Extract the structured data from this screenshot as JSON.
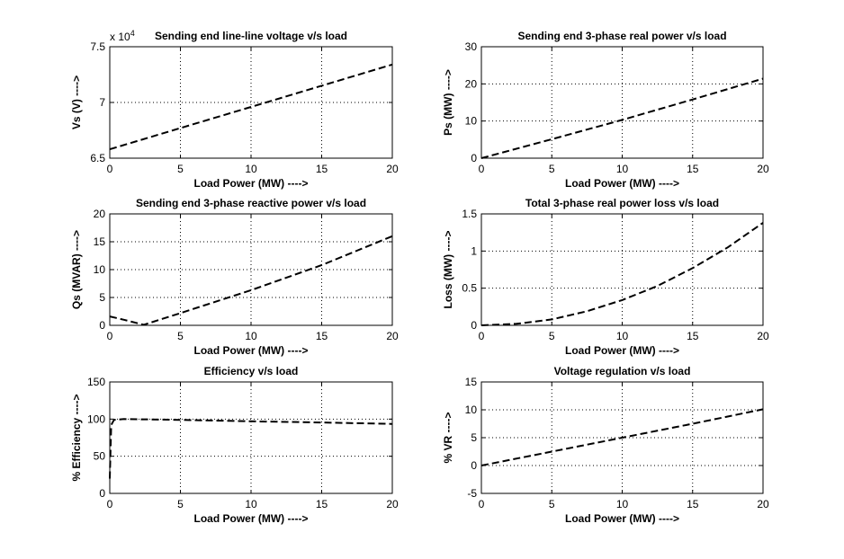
{
  "figure": {
    "background": "#ffffff",
    "line_color": "#000000",
    "line_style": "dashed"
  },
  "chart_data": [
    {
      "type": "line",
      "title": "Sending end line-line voltage v/s load",
      "xlabel": "Load Power (MW) ---->",
      "ylabel": "Vs (V) ---->",
      "exponent_label": "x 10",
      "exponent_power": "4",
      "xlim": [
        0,
        20
      ],
      "ylim": [
        6.5,
        7.5
      ],
      "xticks": [
        0,
        5,
        10,
        15,
        20
      ],
      "xtick_labels": [
        "0",
        "5",
        "10",
        "15",
        "20"
      ],
      "yticks": [
        6.5,
        7,
        7.5
      ],
      "ytick_labels": [
        "6.5",
        "7",
        "7.5"
      ],
      "grid": true,
      "series": [
        {
          "x": [
            0,
            5,
            10,
            15,
            20
          ],
          "y": [
            6.58,
            6.77,
            6.96,
            7.15,
            7.34
          ]
        }
      ]
    },
    {
      "type": "line",
      "title": "Sending end 3-phase real power v/s load",
      "xlabel": "Load Power (MW) ---->",
      "ylabel": "Ps (MW) ---->",
      "xlim": [
        0,
        20
      ],
      "ylim": [
        0,
        30
      ],
      "xticks": [
        0,
        5,
        10,
        15,
        20
      ],
      "xtick_labels": [
        "0",
        "5",
        "10",
        "15",
        "20"
      ],
      "yticks": [
        0,
        10,
        20,
        30
      ],
      "ytick_labels": [
        "0",
        "10",
        "20",
        "30"
      ],
      "grid": true,
      "series": [
        {
          "x": [
            0,
            5,
            10,
            15,
            20
          ],
          "y": [
            0,
            5.1,
            10.3,
            15.8,
            21.4
          ]
        }
      ]
    },
    {
      "type": "line",
      "title": "Sending end 3-phase reactive power v/s load",
      "xlabel": "Load Power (MW) ---->",
      "ylabel": "Qs (MVAR) ---->",
      "xlim": [
        0,
        20
      ],
      "ylim": [
        0,
        20
      ],
      "xticks": [
        0,
        5,
        10,
        15,
        20
      ],
      "xtick_labels": [
        "0",
        "5",
        "10",
        "15",
        "20"
      ],
      "yticks": [
        0,
        5,
        10,
        15,
        20
      ],
      "ytick_labels": [
        "0",
        "5",
        "10",
        "15",
        "20"
      ],
      "grid": true,
      "series": [
        {
          "x": [
            0,
            1,
            2.4,
            5,
            10,
            15,
            20
          ],
          "y": [
            1.6,
            1.0,
            0.1,
            2.2,
            6.3,
            10.8,
            16.0
          ]
        }
      ]
    },
    {
      "type": "line",
      "title": "Total 3-phase real power loss v/s load",
      "xlabel": "Load Power (MW) ---->",
      "ylabel": "Loss (MW) ---->",
      "xlim": [
        0,
        20
      ],
      "ylim": [
        0,
        1.5
      ],
      "xticks": [
        0,
        5,
        10,
        15,
        20
      ],
      "xtick_labels": [
        "0",
        "5",
        "10",
        "15",
        "20"
      ],
      "yticks": [
        0,
        0.5,
        1,
        1.5
      ],
      "ytick_labels": [
        "0",
        "0.5",
        "1",
        "1.5"
      ],
      "grid": true,
      "series": [
        {
          "x": [
            0,
            2.5,
            5,
            7.5,
            10,
            12.5,
            15,
            17.5,
            20
          ],
          "y": [
            0,
            0.02,
            0.08,
            0.19,
            0.34,
            0.53,
            0.77,
            1.05,
            1.38
          ]
        }
      ]
    },
    {
      "type": "line",
      "title": "Efficiency v/s load",
      "xlabel": "Load Power (MW) ---->",
      "ylabel": "% Efficiency ---->",
      "xlim": [
        0,
        20
      ],
      "ylim": [
        0,
        150
      ],
      "xticks": [
        0,
        5,
        10,
        15,
        20
      ],
      "xtick_labels": [
        "0",
        "5",
        "10",
        "15",
        "20"
      ],
      "yticks": [
        0,
        50,
        100,
        150
      ],
      "ytick_labels": [
        "0",
        "50",
        "100",
        "150"
      ],
      "grid": true,
      "series": [
        {
          "x": [
            0,
            0.1,
            0.3,
            1,
            5,
            10,
            15,
            20
          ],
          "y": [
            20,
            92,
            99,
            100,
            99,
            97,
            95.5,
            93.5
          ]
        }
      ]
    },
    {
      "type": "line",
      "title": "Voltage regulation v/s load",
      "xlabel": "Load Power (MW) ---->",
      "ylabel": "% VR ---->",
      "xlim": [
        0,
        20
      ],
      "ylim": [
        -5,
        15
      ],
      "xticks": [
        0,
        5,
        10,
        15,
        20
      ],
      "xtick_labels": [
        "0",
        "5",
        "10",
        "15",
        "20"
      ],
      "yticks": [
        -5,
        0,
        5,
        10,
        15
      ],
      "ytick_labels": [
        "-5",
        "0",
        "5",
        "10",
        "15"
      ],
      "grid": true,
      "series": [
        {
          "x": [
            0,
            5,
            10,
            15,
            20
          ],
          "y": [
            0,
            2.5,
            5.0,
            7.5,
            10.1
          ]
        }
      ]
    }
  ]
}
